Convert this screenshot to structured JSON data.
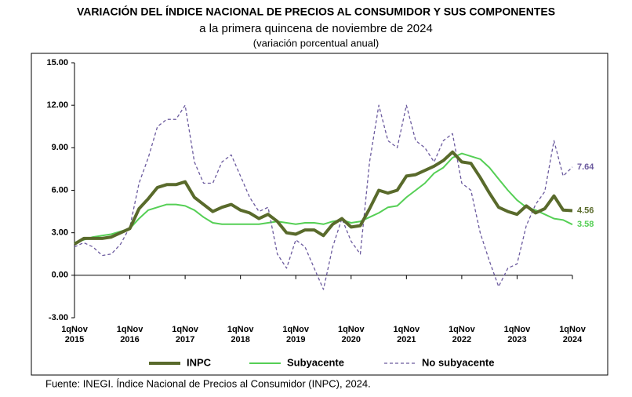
{
  "chart_data": {
    "type": "line",
    "title": "VARIACIÓN DEL ÍNDICE NACIONAL DE PRECIOS AL CONSUMIDOR Y SUS COMPONENTES",
    "subtitle": "a la primera quincena de noviembre de 2024",
    "subtitle2": "(variación porcentual anual)",
    "source": "Fuente: INEGI. Índice Nacional de Precios al Consumidor (INPC), 2024.",
    "categories": [
      "1qNov 2015",
      null,
      null,
      null,
      null,
      null,
      "1qNov 2016",
      null,
      null,
      null,
      null,
      null,
      "1qNov 2017",
      null,
      null,
      null,
      null,
      null,
      "1qNov 2018",
      null,
      null,
      null,
      null,
      null,
      "1qNov 2019",
      null,
      null,
      null,
      null,
      null,
      "1qNov 2020",
      null,
      null,
      null,
      null,
      null,
      "1qNov 2021",
      null,
      null,
      null,
      null,
      null,
      "1qNov 2022",
      null,
      null,
      null,
      null,
      null,
      "1qNov 2023",
      null,
      null,
      null,
      null,
      null,
      "1qNov 2024"
    ],
    "ylim": [
      -3,
      15
    ],
    "yticks": [
      {
        "value": -3,
        "label": "-3.00"
      },
      {
        "value": 0,
        "label": "0.00"
      },
      {
        "value": 3,
        "label": "3.00"
      },
      {
        "value": 6,
        "label": "6.00"
      },
      {
        "value": 9,
        "label": "9.00"
      },
      {
        "value": 12,
        "label": "12.00"
      },
      {
        "value": 15,
        "label": "15.00"
      }
    ],
    "grid": false,
    "legend": "bottom",
    "series": [
      {
        "name": "INPC",
        "color": "#596a2b",
        "width": 4,
        "dashed": false,
        "values": [
          2.2,
          2.6,
          2.6,
          2.6,
          2.7,
          3.0,
          3.3,
          4.7,
          5.4,
          6.2,
          6.4,
          6.4,
          6.6,
          5.5,
          5.0,
          4.5,
          4.8,
          5.0,
          4.6,
          4.4,
          4.0,
          4.3,
          3.8,
          3.0,
          2.9,
          3.2,
          3.2,
          2.8,
          3.6,
          4.0,
          3.4,
          3.5,
          4.7,
          6.0,
          5.8,
          6.0,
          7.0,
          7.1,
          7.4,
          7.7,
          8.1,
          8.7,
          8.0,
          7.9,
          6.9,
          5.8,
          4.8,
          4.5,
          4.3,
          4.9,
          4.4,
          4.7,
          5.6,
          4.6,
          4.56
        ]
      },
      {
        "name": "Subyacente",
        "color": "#55cf55",
        "width": 2,
        "dashed": false,
        "values": [
          2.3,
          2.5,
          2.7,
          2.8,
          2.9,
          3.1,
          3.3,
          4.0,
          4.6,
          4.8,
          5.0,
          5.0,
          4.9,
          4.6,
          4.1,
          3.7,
          3.6,
          3.6,
          3.6,
          3.6,
          3.6,
          3.7,
          3.8,
          3.7,
          3.6,
          3.7,
          3.7,
          3.6,
          3.8,
          3.9,
          3.7,
          3.8,
          4.1,
          4.4,
          4.8,
          4.9,
          5.5,
          6.0,
          6.5,
          7.2,
          7.6,
          8.3,
          8.6,
          8.4,
          8.2,
          7.6,
          6.8,
          6.0,
          5.3,
          4.8,
          4.6,
          4.3,
          4.0,
          3.9,
          3.58
        ]
      },
      {
        "name": "No subyacente",
        "color": "#6b5a9e",
        "width": 1.3,
        "dashed": true,
        "values": [
          2.0,
          2.3,
          2.0,
          1.4,
          1.5,
          2.2,
          3.4,
          6.5,
          8.3,
          10.5,
          11.0,
          11.0,
          12.0,
          8.0,
          6.5,
          6.5,
          8.0,
          8.5,
          7.0,
          5.5,
          4.5,
          4.8,
          1.5,
          0.5,
          2.5,
          2.0,
          0.5,
          -1.0,
          2.0,
          4.0,
          2.4,
          1.5,
          8.0,
          12.0,
          9.5,
          9.0,
          12.0,
          9.5,
          9.0,
          8.0,
          9.5,
          10.0,
          6.5,
          6.0,
          3.0,
          1.0,
          -0.8,
          0.5,
          0.8,
          3.5,
          5.0,
          5.9,
          9.5,
          7.0,
          7.64
        ]
      }
    ]
  }
}
